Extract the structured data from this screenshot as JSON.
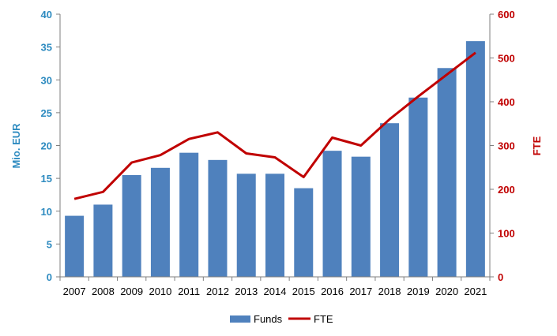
{
  "chart_data": {
    "type": "bar",
    "categories": [
      "2007",
      "2008",
      "2009",
      "2010",
      "2011",
      "2012",
      "2013",
      "2014",
      "2015",
      "2016",
      "2017",
      "2018",
      "2019",
      "2020",
      "2021"
    ],
    "series": [
      {
        "name": "Funds",
        "type": "bar",
        "axis": "left",
        "values": [
          9.3,
          11.0,
          15.5,
          16.6,
          18.9,
          17.8,
          15.7,
          15.7,
          13.5,
          19.2,
          18.3,
          23.4,
          27.3,
          31.8,
          35.9
        ],
        "color": "#4f81bd"
      },
      {
        "name": "FTE",
        "type": "line",
        "axis": "right",
        "values": [
          178,
          194,
          261,
          278,
          315,
          330,
          282,
          273,
          228,
          318,
          300,
          360,
          412,
          462,
          512
        ],
        "color": "#c00000"
      }
    ],
    "ylabel": "Mio. EUR",
    "ylabel_right": "FTE",
    "ylim": [
      0,
      40
    ],
    "ylim_right": [
      0,
      600
    ],
    "yticks": [
      "0",
      "5",
      "10",
      "15",
      "20",
      "25",
      "30",
      "35",
      "40"
    ],
    "yticks_right": [
      "0",
      "100",
      "200",
      "300",
      "400",
      "500",
      "600"
    ],
    "grid": false,
    "legend_position": "bottom",
    "axis_colors": {
      "left": "#2e8bc0",
      "right": "#c00000"
    }
  }
}
